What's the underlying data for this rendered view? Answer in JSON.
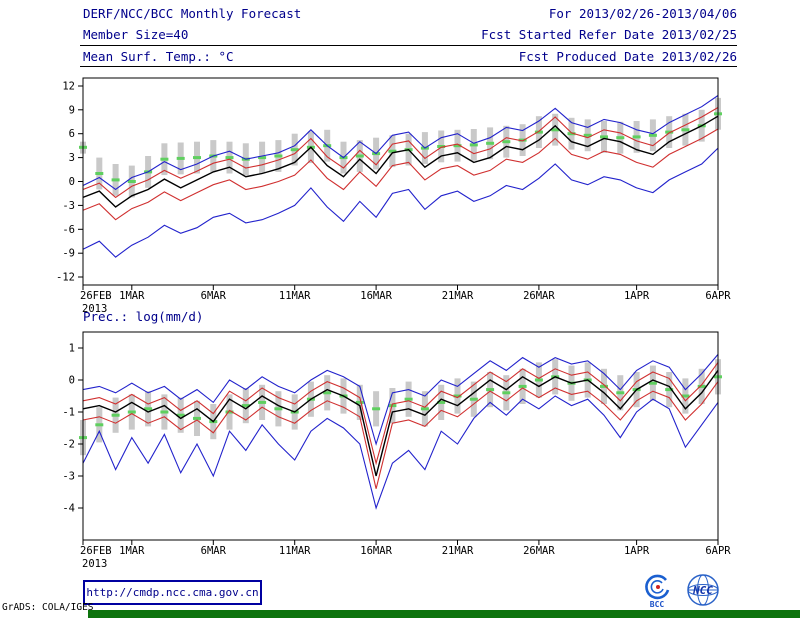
{
  "header": {
    "line1_left": "DERF/NCC/BCC Monthly Forecast",
    "line1_right": "For 2013/02/26-2013/04/06",
    "line2_left": "Member Size=40",
    "line2_right": "Fcst Started Refer Date 2013/02/25",
    "line3_left": "Mean Surf. Temp.: °C",
    "line3_right": "Fcst Produced Date 2013/02/26"
  },
  "footer": {
    "url": "http://cmdp.ncc.cma.gov.cn",
    "credit": "GrADS: COLA/IGES",
    "bcc_label": "BCC",
    "ncc_label": "NCC",
    "bar_color": "#0d730d"
  },
  "colors": {
    "header_text": "#00008b",
    "envelope_line": "#2222cc",
    "quartile_line": "#d03030",
    "mean_line": "#000000",
    "climatology_dash": "#5fcf5f",
    "spread_bar": "#c9c9c9"
  },
  "chart_data": [
    {
      "type": "line",
      "title": "Mean Surf. Temp.: °C",
      "ylabel": "°C",
      "ylim": [
        -13,
        13
      ],
      "yticks": [
        -12,
        -9,
        -6,
        -3,
        0,
        3,
        6,
        9,
        12
      ],
      "x_dates": [
        "26FEB",
        "27FEB",
        "28FEB",
        "1MAR",
        "2MAR",
        "3MAR",
        "4MAR",
        "5MAR",
        "6MAR",
        "7MAR",
        "8MAR",
        "9MAR",
        "10MAR",
        "11MAR",
        "12MAR",
        "13MAR",
        "14MAR",
        "15MAR",
        "16MAR",
        "17MAR",
        "18MAR",
        "19MAR",
        "20MAR",
        "21MAR",
        "22MAR",
        "23MAR",
        "24MAR",
        "25MAR",
        "26MAR",
        "27MAR",
        "28MAR",
        "29MAR",
        "30MAR",
        "31MAR",
        "1APR",
        "2APR",
        "3APR",
        "4APR",
        "5APR",
        "6APR"
      ],
      "xtick_indices": [
        0,
        3,
        8,
        13,
        18,
        23,
        28,
        34,
        39
      ],
      "xtick_labels": [
        "26FEB",
        "1MAR",
        "6MAR",
        "11MAR",
        "16MAR",
        "21MAR",
        "26MAR",
        "1APR",
        "6APR"
      ],
      "xtick_sublabel": {
        "0": "2013"
      },
      "series": [
        {
          "name": "ensemble-max",
          "color": "#2222cc",
          "values": [
            -0.5,
            0.5,
            -1,
            0.5,
            1.2,
            2.5,
            1.5,
            2.2,
            3.2,
            3.8,
            2.8,
            3.2,
            3.6,
            4.5,
            6.5,
            4.5,
            3,
            5,
            3.5,
            5.8,
            6.2,
            4.2,
            5.5,
            6,
            4.8,
            5.5,
            6.8,
            6.4,
            7.6,
            9.2,
            7.4,
            6.8,
            7.8,
            7.4,
            6.5,
            6,
            7.4,
            8.4,
            9.4,
            10.8
          ]
        },
        {
          "name": "upper-quartile",
          "color": "#d03030",
          "values": [
            -1,
            -0.2,
            -2,
            -0.6,
            0.2,
            1.4,
            0.4,
            1.3,
            2.3,
            2.8,
            1.7,
            2.1,
            2.7,
            3.5,
            5.4,
            3.1,
            1.7,
            3.9,
            2.1,
            4.7,
            5.1,
            2.9,
            4.3,
            4.7,
            3.5,
            4.1,
            5.5,
            5.1,
            6.3,
            8.1,
            6.1,
            5.5,
            6.5,
            6.1,
            5.1,
            4.5,
            6.1,
            7.1,
            8.1,
            9.3
          ]
        },
        {
          "name": "lower-quartile",
          "color": "#d03030",
          "values": [
            -3.6,
            -2.8,
            -4.8,
            -3.4,
            -2.6,
            -1.3,
            -2.4,
            -1.4,
            -0.4,
            0.2,
            -1,
            -0.6,
            0,
            0.8,
            2.7,
            0.4,
            -1,
            1.2,
            -0.6,
            2,
            2.4,
            0.2,
            1.6,
            2,
            0.8,
            1.4,
            2.8,
            2.4,
            3.6,
            5.4,
            3.4,
            2.8,
            3.8,
            3.4,
            2.4,
            1.8,
            3.4,
            4.4,
            5.4,
            6.6
          ]
        },
        {
          "name": "ensemble-min",
          "color": "#2222cc",
          "values": [
            -8.5,
            -7.5,
            -9.5,
            -8,
            -7,
            -5.5,
            -6.5,
            -5.8,
            -4.5,
            -4,
            -5.2,
            -4.8,
            -4,
            -3,
            -0.8,
            -3.2,
            -5,
            -2.5,
            -4.5,
            -1.5,
            -1,
            -3.5,
            -1.8,
            -1.2,
            -2.5,
            -1.8,
            -0.5,
            -1,
            0.4,
            2.2,
            0.2,
            -0.4,
            0.6,
            0.2,
            -0.8,
            -1.4,
            0.2,
            1.2,
            2.2,
            4.2
          ]
        },
        {
          "name": "ensemble-mean",
          "color": "#000000",
          "values": [
            -2,
            -1.2,
            -3.2,
            -1.8,
            -1,
            0.3,
            -0.8,
            0.2,
            1.2,
            1.8,
            0.6,
            1,
            1.6,
            2.4,
            4.3,
            2,
            0.6,
            2.8,
            1,
            3.6,
            4,
            1.8,
            3.2,
            3.6,
            2.4,
            3,
            4.4,
            4,
            5.2,
            7,
            5,
            4.4,
            5.4,
            5,
            4,
            3.4,
            5,
            6,
            7,
            8.2
          ]
        }
      ],
      "climatology": {
        "color": "#5fcf5f",
        "values": [
          4.3,
          1,
          0.2,
          0,
          1.2,
          2.8,
          2.9,
          3,
          3.2,
          3,
          2.8,
          3,
          3.2,
          4,
          4.3,
          4.5,
          3,
          3.2,
          3.5,
          3.8,
          4,
          4.2,
          4.4,
          4.5,
          4.6,
          4.8,
          5,
          5.2,
          6.2,
          6.5,
          6,
          5.8,
          5.6,
          5.5,
          5.6,
          5.8,
          6.2,
          6.5,
          7,
          8.5
        ]
      },
      "spread_bars": {
        "color": "#c9c9c9",
        "top": [
          5,
          3,
          2.2,
          2,
          3.2,
          4.8,
          4.9,
          5,
          5.2,
          5,
          4.8,
          5,
          5.2,
          6,
          6.3,
          6.5,
          5,
          5.2,
          5.5,
          5.8,
          6,
          6.2,
          6.4,
          6.5,
          6.6,
          6.8,
          7,
          7.2,
          8.2,
          8.5,
          8,
          7.8,
          7.6,
          7.5,
          7.6,
          7.8,
          8.2,
          8.5,
          9,
          10.5
        ],
        "bottom": [
          3.5,
          -1,
          -1.8,
          -2,
          -0.8,
          0.8,
          0.9,
          1,
          1.2,
          1,
          0.8,
          1,
          1.2,
          2,
          2.3,
          2.5,
          1,
          1.2,
          1.5,
          1.8,
          2,
          2.2,
          2.4,
          2.5,
          2.6,
          2.8,
          3,
          3.2,
          4.2,
          4.5,
          4,
          3.8,
          3.6,
          3.5,
          3.6,
          3.8,
          4.2,
          4.5,
          5,
          6.5
        ]
      }
    },
    {
      "type": "line",
      "title": "Prec.: log(mm/d)",
      "ylabel": "log(mm/d)",
      "ylim": [
        -5,
        1.5
      ],
      "yticks": [
        -4,
        -3,
        -2,
        -1,
        0,
        1
      ],
      "x_dates": [
        "26FEB",
        "27FEB",
        "28FEB",
        "1MAR",
        "2MAR",
        "3MAR",
        "4MAR",
        "5MAR",
        "6MAR",
        "7MAR",
        "8MAR",
        "9MAR",
        "10MAR",
        "11MAR",
        "12MAR",
        "13MAR",
        "14MAR",
        "15MAR",
        "16MAR",
        "17MAR",
        "18MAR",
        "19MAR",
        "20MAR",
        "21MAR",
        "22MAR",
        "23MAR",
        "24MAR",
        "25MAR",
        "26MAR",
        "27MAR",
        "28MAR",
        "29MAR",
        "30MAR",
        "31MAR",
        "1APR",
        "2APR",
        "3APR",
        "4APR",
        "5APR",
        "6APR"
      ],
      "xtick_indices": [
        0,
        3,
        8,
        13,
        18,
        23,
        28,
        34,
        39
      ],
      "xtick_labels": [
        "26FEB",
        "1MAR",
        "6MAR",
        "11MAR",
        "16MAR",
        "21MAR",
        "26MAR",
        "1APR",
        "6APR"
      ],
      "xtick_sublabel": {
        "0": "2013"
      },
      "series": [
        {
          "name": "ensemble-max",
          "color": "#2222cc",
          "values": [
            -0.3,
            -0.2,
            -0.4,
            -0.1,
            -0.4,
            -0.2,
            -0.6,
            -0.3,
            -0.7,
            0,
            -0.3,
            0.1,
            -0.2,
            -0.4,
            0,
            0.3,
            0.1,
            -0.2,
            -2,
            -0.4,
            -0.3,
            -0.5,
            0,
            -0.2,
            0.2,
            0.6,
            0.3,
            0.7,
            0.4,
            0.7,
            0.5,
            0.6,
            0.2,
            -0.3,
            0.3,
            0.6,
            0.4,
            -0.3,
            0.2,
            0.8
          ]
        },
        {
          "name": "upper-quartile",
          "color": "#d03030",
          "values": [
            -0.65,
            -0.55,
            -0.75,
            -0.45,
            -0.75,
            -0.55,
            -0.95,
            -0.65,
            -1.05,
            -0.35,
            -0.65,
            -0.25,
            -0.55,
            -0.75,
            -0.35,
            -0.05,
            -0.25,
            -0.55,
            -2.6,
            -0.75,
            -0.65,
            -0.85,
            -0.35,
            -0.55,
            -0.15,
            0.25,
            -0.05,
            0.35,
            0.05,
            0.35,
            0.15,
            0.25,
            -0.15,
            -0.65,
            -0.05,
            0.25,
            0.05,
            -0.65,
            -0.15,
            0.55
          ]
        },
        {
          "name": "lower-quartile",
          "color": "#d03030",
          "values": [
            -1.25,
            -1.15,
            -1.35,
            -1.05,
            -1.35,
            -1.15,
            -1.55,
            -1.25,
            -1.65,
            -0.95,
            -1.25,
            -0.85,
            -1.15,
            -1.35,
            -0.95,
            -0.65,
            -0.85,
            -1.15,
            -3.4,
            -1.35,
            -1.25,
            -1.45,
            -0.95,
            -1.15,
            -0.75,
            -0.35,
            -0.65,
            -0.25,
            -0.55,
            -0.25,
            -0.45,
            -0.35,
            -0.75,
            -1.25,
            -0.65,
            -0.35,
            -0.55,
            -1.25,
            -0.75,
            -0.05
          ]
        },
        {
          "name": "ensemble-min",
          "color": "#2222cc",
          "values": [
            -2.6,
            -1.6,
            -2.8,
            -1.8,
            -2.6,
            -1.7,
            -2.9,
            -2,
            -3,
            -1.6,
            -2.2,
            -1.4,
            -2,
            -2.5,
            -1.6,
            -1.2,
            -1.5,
            -2,
            -4,
            -2.6,
            -2.2,
            -2.8,
            -1.6,
            -2,
            -1.2,
            -0.7,
            -1.1,
            -0.6,
            -0.9,
            -0.5,
            -0.8,
            -0.6,
            -1.1,
            -1.8,
            -1,
            -0.6,
            -0.9,
            -2.1,
            -1.4,
            -0.7
          ]
        },
        {
          "name": "ensemble-mean",
          "color": "#000000",
          "values": [
            -0.9,
            -0.8,
            -1,
            -0.7,
            -1,
            -0.8,
            -1.2,
            -0.9,
            -1.3,
            -0.6,
            -0.9,
            -0.5,
            -0.8,
            -1,
            -0.6,
            -0.3,
            -0.5,
            -0.8,
            -3,
            -1,
            -0.9,
            -1.1,
            -0.6,
            -0.8,
            -0.4,
            0,
            -0.3,
            0.1,
            -0.2,
            0.1,
            -0.1,
            0,
            -0.4,
            -0.9,
            -0.3,
            0,
            -0.2,
            -0.9,
            -0.4,
            0.3
          ]
        }
      ],
      "climatology": {
        "color": "#5fcf5f",
        "values": [
          -1.8,
          -1.4,
          -1.1,
          -1,
          -0.9,
          -1,
          -1.1,
          -1.2,
          -1.3,
          -1,
          -0.8,
          -0.7,
          -0.9,
          -1,
          -0.6,
          -0.4,
          -0.5,
          -0.7,
          -0.9,
          -0.8,
          -0.6,
          -0.9,
          -0.7,
          -0.5,
          -0.6,
          -0.3,
          -0.4,
          -0.2,
          0,
          0.1,
          -0.1,
          0,
          -0.2,
          -0.4,
          -0.3,
          -0.1,
          -0.3,
          -0.5,
          -0.2,
          0.1
        ]
      },
      "spread_bars": {
        "color": "#c9c9c9",
        "top": [
          -1.25,
          -0.85,
          -0.55,
          -0.45,
          -0.35,
          -0.45,
          -0.55,
          -0.65,
          -0.75,
          -0.45,
          -0.25,
          -0.15,
          -0.35,
          -0.45,
          -0.05,
          0.15,
          0.05,
          -0.15,
          -0.35,
          -0.25,
          -0.05,
          -0.35,
          -0.15,
          0.05,
          -0.05,
          0.25,
          0.15,
          0.35,
          0.55,
          0.65,
          0.45,
          0.55,
          0.35,
          0.15,
          0.25,
          0.45,
          0.25,
          0.05,
          0.35,
          0.65
        ],
        "bottom": [
          -2.35,
          -1.95,
          -1.65,
          -1.55,
          -1.45,
          -1.55,
          -1.65,
          -1.75,
          -1.85,
          -1.55,
          -1.35,
          -1.25,
          -1.45,
          -1.55,
          -1.15,
          -0.95,
          -1.05,
          -1.25,
          -1.45,
          -1.35,
          -1.15,
          -1.45,
          -1.25,
          -1.05,
          -1.15,
          -0.85,
          -0.95,
          -0.75,
          -0.55,
          -0.45,
          -0.65,
          -0.55,
          -0.75,
          -0.95,
          -0.85,
          -0.65,
          -0.85,
          -1.05,
          -0.75,
          -0.45
        ]
      }
    }
  ]
}
